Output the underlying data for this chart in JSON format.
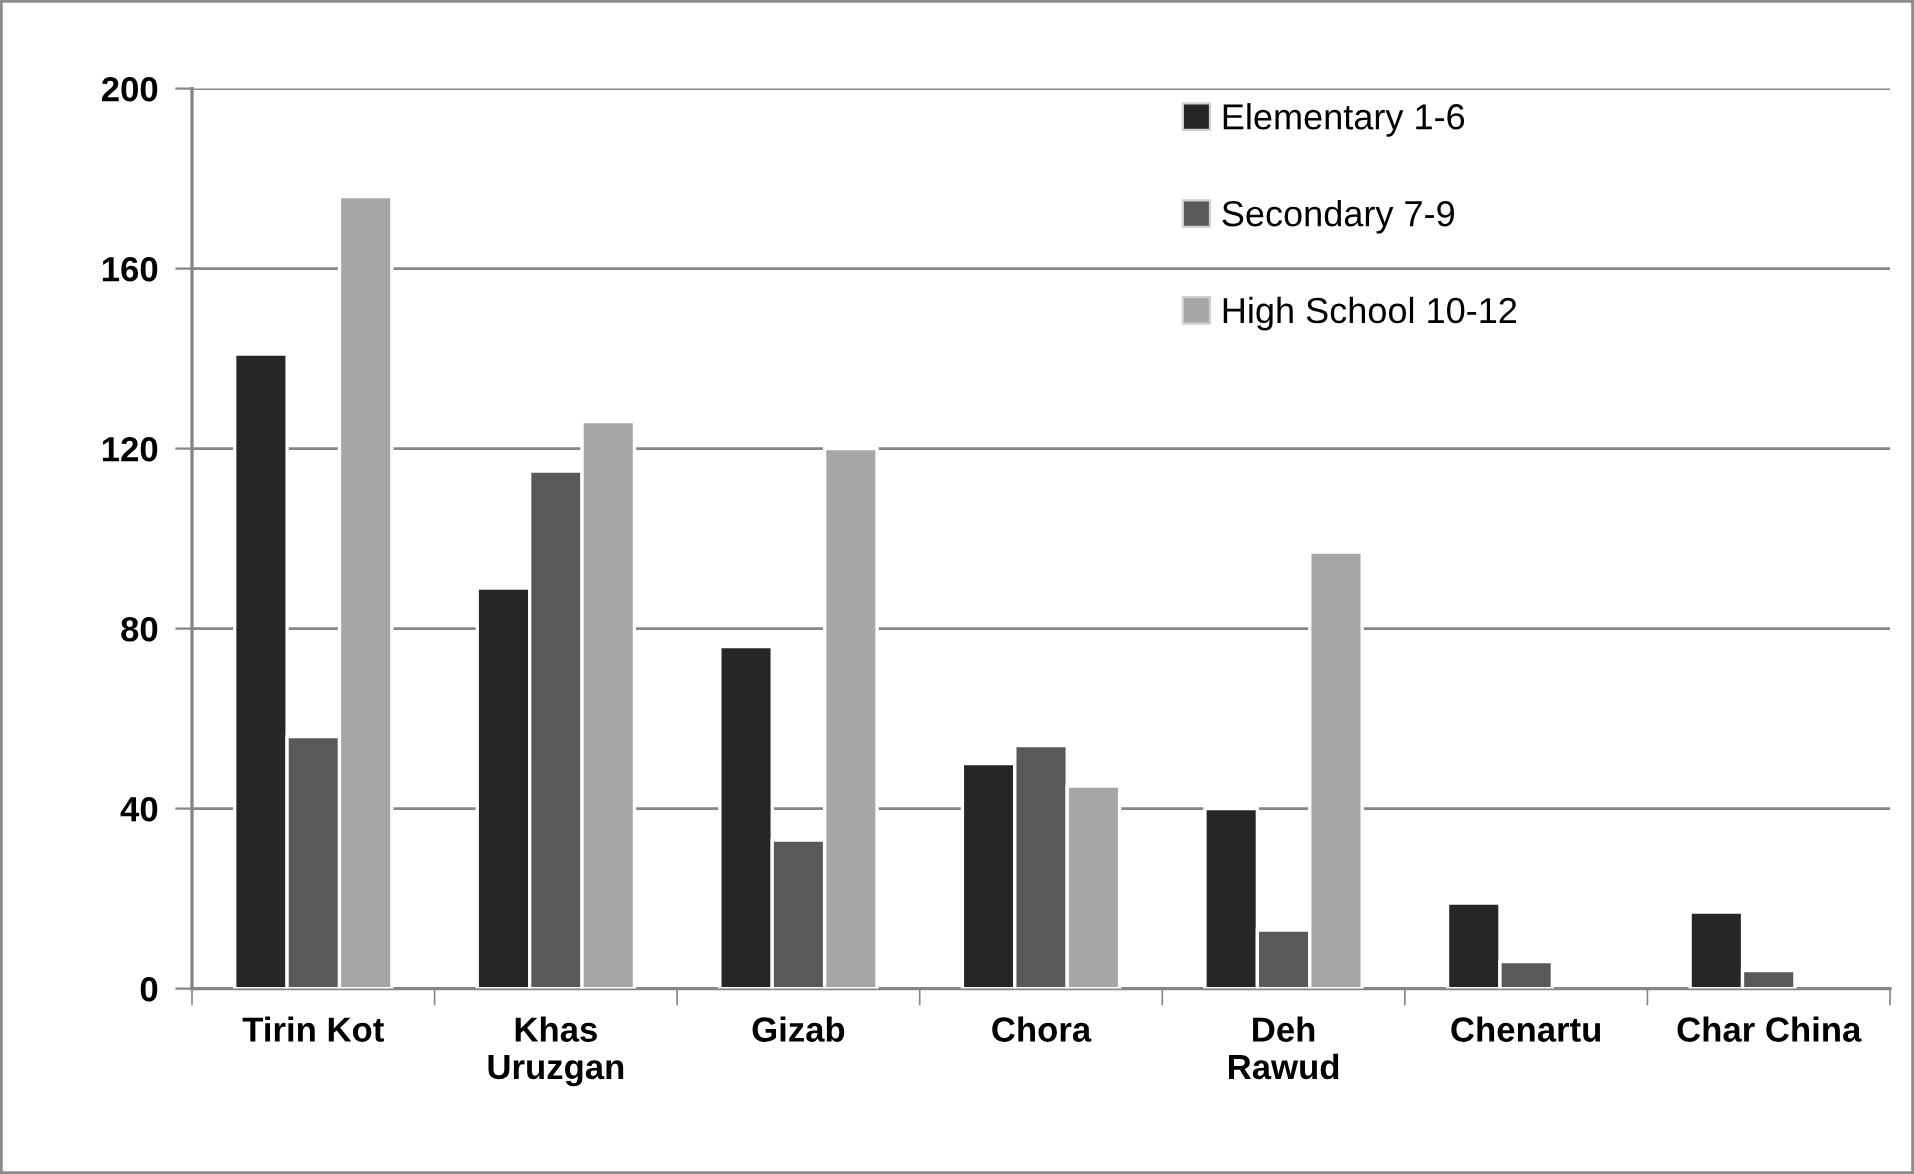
{
  "chart_data": {
    "type": "bar",
    "categories": [
      "Tirin Kot",
      "Khas\nUruzgan",
      "Gizab",
      "Chora",
      "Deh\nRawud",
      "Chenartu",
      "Char China"
    ],
    "series": [
      {
        "name": "Elementary 1-6",
        "color": "#262626",
        "values": [
          141,
          89,
          76,
          50,
          40,
          19,
          17
        ]
      },
      {
        "name": "Secondary 7-9",
        "color": "#595959",
        "values": [
          56,
          115,
          33,
          54,
          13,
          6,
          4
        ]
      },
      {
        "name": "High School 10-12",
        "color": "#a6a6a6",
        "values": [
          176,
          126,
          120,
          45,
          97,
          null,
          null
        ]
      }
    ],
    "ylim": [
      0,
      200
    ],
    "yticks": [
      0,
      40,
      80,
      120,
      160,
      200
    ],
    "grid": "y",
    "legend": "top right"
  }
}
